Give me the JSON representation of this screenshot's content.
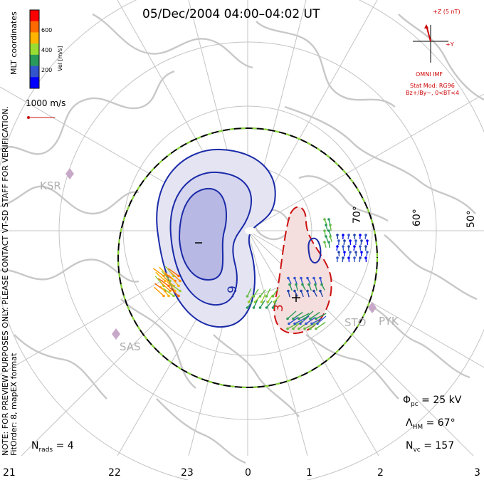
{
  "title": "05/Dec/2004 04:00–04:02 UT",
  "side_note": {
    "line1": "NOTE: FOR PREVIEW PURPOSES ONLY. PLEASE CONTACT VT-SD STAFF FOR VERIFICATION.",
    "line2": "FitOrder: 8,  mapEX format"
  },
  "coords_label": "MLT coordinates",
  "colorbar": {
    "title": "Vel [m/s]",
    "labels": [
      "600",
      "400",
      "200"
    ],
    "colors": [
      "#ff0000",
      "#ff6a00",
      "#ffb400",
      "#99dd33",
      "#2a9a5a",
      "#3355cc",
      "#0000ff"
    ]
  },
  "scale_vector_label": "1000 m/s",
  "imf": {
    "z_label": "+Z (5 nT)",
    "y_label": "+Y",
    "source": "OMNI IMF",
    "model": "Stat Mod: RG96",
    "condition": "Bz+/By−, 0<BT<4"
  },
  "stations": [
    "KSR",
    "SAS",
    "STO",
    "PYK"
  ],
  "latitude_labels": [
    "70°",
    "60°",
    "50°"
  ],
  "mlt_labels": [
    "21",
    "22",
    "23",
    "0",
    "1",
    "2",
    "3"
  ],
  "contour_labels": [
    "-9",
    "3"
  ],
  "stats": {
    "phi_pc_sym": "Φ",
    "phi_pc_sub": "pc",
    "phi_pc_value": "= 25 kV",
    "lambda_hm_sym": "Λ",
    "lambda_hm_sub": "HM",
    "lambda_hm_value": "= 67°",
    "n_vc_sym": "N",
    "n_vc_sub": "vc",
    "n_vc_value": "= 157",
    "n_rads_sym": "N",
    "n_rads_sub": "rads",
    "n_rads_value": "= 4"
  },
  "convection": {
    "cross_polar_cap_potential_kV": 25,
    "heppner_maynard_boundary_deg": 67,
    "vectors_count": 157,
    "radars_count": 4
  },
  "colors": {
    "land": "#c8c8c8",
    "grid": "#c4c4c4",
    "negative_cell_line": "#1a2aa8",
    "positive_cell_line": "#cc1111",
    "imf_text": "#cc0000"
  }
}
